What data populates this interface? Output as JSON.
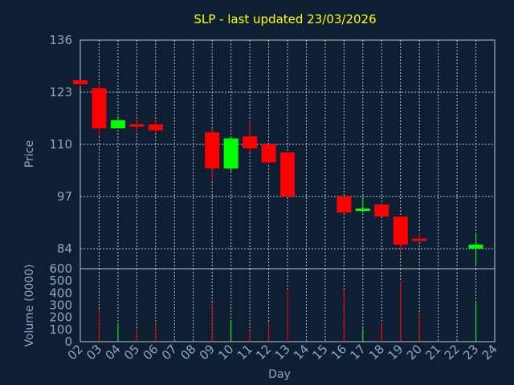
{
  "chart_data": {
    "type": "candlestick",
    "title": "SLP - last updated 23/03/2026",
    "xlabel": "Day",
    "ylabel": "Price",
    "volume_label": "Volume (0000)",
    "categories": [
      "02",
      "03",
      "04",
      "05",
      "06",
      "07",
      "08",
      "09",
      "10",
      "11",
      "12",
      "13",
      "14",
      "15",
      "16",
      "17",
      "18",
      "19",
      "20",
      "21",
      "22",
      "23",
      "24"
    ],
    "ylim": [
      79,
      136
    ],
    "yticks": [
      136,
      123,
      110,
      97,
      84
    ],
    "volume_ylim": [
      0,
      600
    ],
    "volume_yticks": [
      600,
      500,
      400,
      300,
      200,
      100,
      0
    ],
    "grid": true,
    "colors": {
      "up": "#00ff00",
      "down": "#ff0000",
      "title": "#ffff00",
      "axis_text": "#8ea6c4",
      "background": "#0f1f33",
      "grid": "#b8c4d4"
    },
    "candles": [
      {
        "day": "02",
        "open": 126,
        "close": 125,
        "high": 126,
        "low": 124.5,
        "volume": 0
      },
      {
        "day": "03",
        "open": 124,
        "close": 114,
        "high": 125,
        "low": 112,
        "volume": 270
      },
      {
        "day": "04",
        "open": 114,
        "close": 116,
        "high": 117,
        "low": 114,
        "volume": 150
      },
      {
        "day": "05",
        "open": 115,
        "close": 114.5,
        "high": 116.5,
        "low": 113,
        "volume": 110
      },
      {
        "day": "06",
        "open": 115,
        "close": 113.5,
        "high": 116.5,
        "low": 113,
        "volume": 160
      },
      {
        "day": "09",
        "open": 113,
        "close": 104,
        "high": 114,
        "low": 101,
        "volume": 320
      },
      {
        "day": "10",
        "open": 104,
        "close": 111.5,
        "high": 112,
        "low": 103,
        "volume": 180
      },
      {
        "day": "11",
        "open": 112,
        "close": 109,
        "high": 116,
        "low": 108,
        "volume": 80
      },
      {
        "day": "12",
        "open": 110,
        "close": 105.5,
        "high": 110,
        "low": 105,
        "volume": 160
      },
      {
        "day": "13",
        "open": 108,
        "close": 97,
        "high": 108,
        "low": 97,
        "volume": 420
      },
      {
        "day": "16",
        "open": 97,
        "close": 93,
        "high": 97,
        "low": 93,
        "volume": 430
      },
      {
        "day": "17",
        "open": 94,
        "close": 94,
        "high": 97,
        "low": 93,
        "volume": 110
      },
      {
        "day": "18",
        "open": 95,
        "close": 92,
        "high": 95,
        "low": 92,
        "volume": 150
      },
      {
        "day": "19",
        "open": 92,
        "close": 85,
        "high": 92,
        "low": 83,
        "volume": 500
      },
      {
        "day": "20",
        "open": 86.5,
        "close": 86,
        "high": 88,
        "low": 86,
        "volume": 240
      },
      {
        "day": "23",
        "open": 84,
        "close": 85,
        "high": 88,
        "low": 80,
        "volume": 330
      }
    ]
  }
}
